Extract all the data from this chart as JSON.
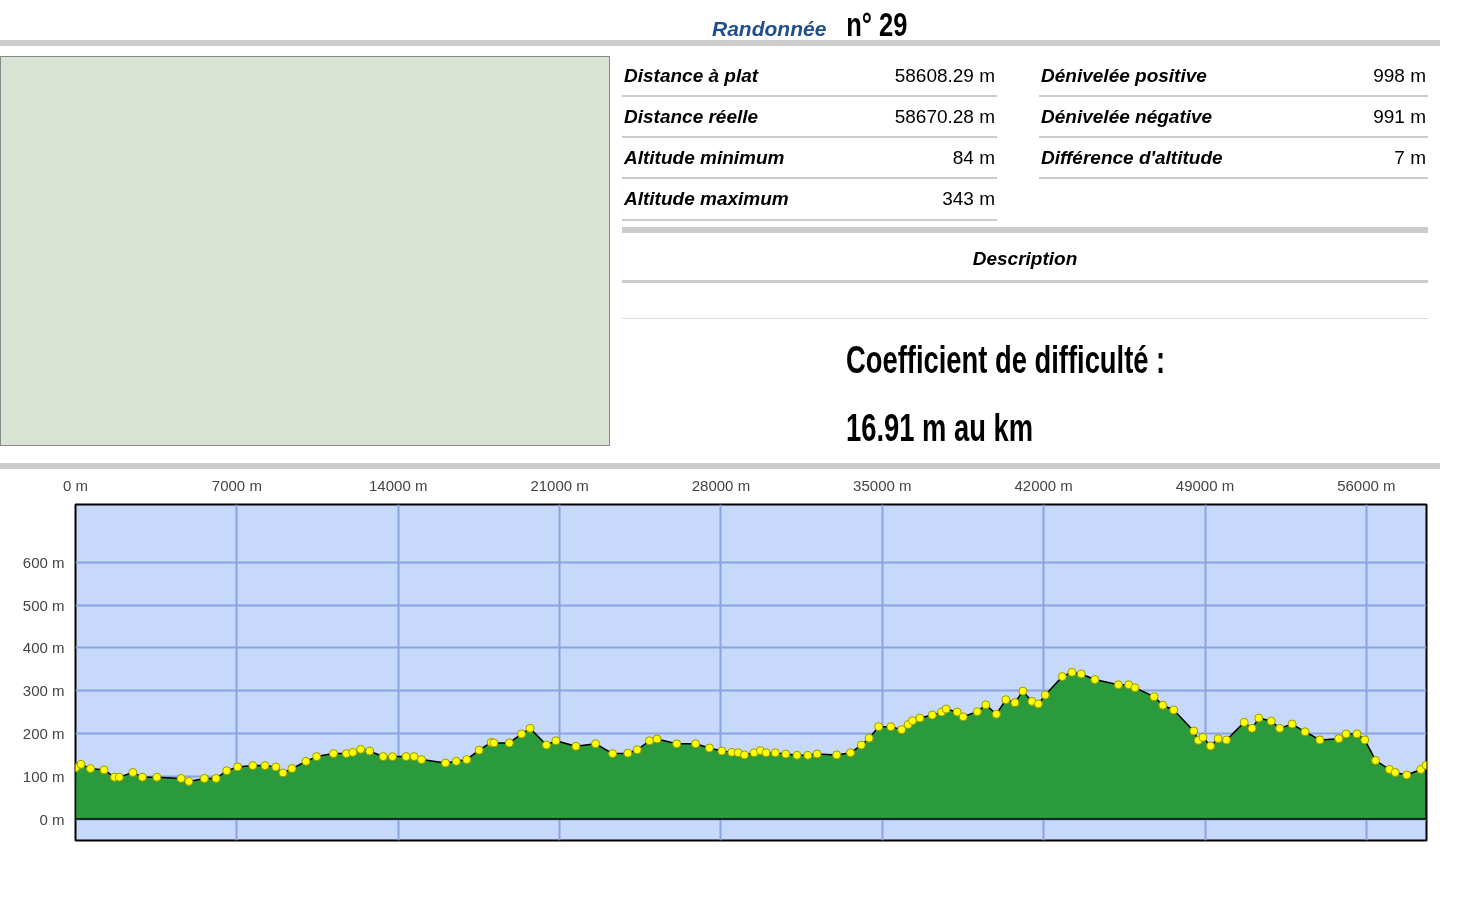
{
  "chart_data": [
    {
      "type": "other",
      "title": "Randonnée n° 29",
      "annotations": [
        "Distance à plat",
        "58608.29 m",
        "Distance réelle",
        "58670.28 m",
        "Altitude minimum",
        "84 m",
        "Altitude maximum",
        "343 m",
        "Dénivelée positive",
        "998 m",
        "Dénivelée négative",
        "991 m",
        "Différence d'altitude",
        "7 m",
        "Description",
        "Coefficient de difficulté :",
        "16.91 m au km"
      ]
    },
    {
      "type": "area",
      "color": "#2a9a3c",
      "marker": "circle",
      "grid": true,
      "xlim": [
        0,
        58608
      ],
      "ylim": [
        -50,
        735
      ],
      "xticks": [
        {
          "value": 0,
          "label": "0 m"
        },
        {
          "value": 7000,
          "label": "7000 m"
        },
        {
          "value": 14000,
          "label": "14000 m"
        },
        {
          "value": 21000,
          "label": "21000 m"
        },
        {
          "value": 28000,
          "label": "28000 m"
        },
        {
          "value": 35000,
          "label": "35000 m"
        },
        {
          "value": 42000,
          "label": "42000 m"
        },
        {
          "value": 49000,
          "label": "49000 m"
        },
        {
          "value": 56000,
          "label": "56000 m"
        }
      ],
      "yticks": [
        {
          "value": 0,
          "label": "0 m"
        },
        {
          "value": 100,
          "label": "100 m"
        },
        {
          "value": 200,
          "label": "200 m"
        },
        {
          "value": 300,
          "label": "300 m"
        },
        {
          "value": 400,
          "label": "400 m"
        },
        {
          "value": 500,
          "label": "500 m"
        },
        {
          "value": 600,
          "label": "600 m"
        }
      ],
      "x": [
        0,
        240,
        650,
        1240,
        1690,
        1900,
        2490,
        2900,
        3530,
        4580,
        4920,
        5590,
        6100,
        6560,
        7030,
        7690,
        8220,
        8690,
        9000,
        9390,
        10000,
        10460,
        11190,
        11750,
        12030,
        12370,
        12760,
        13350,
        13750,
        14340,
        14690,
        15010,
        16050,
        16520,
        16970,
        17510,
        18030,
        18150,
        18820,
        19350,
        19720,
        20430,
        20840,
        21710,
        22560,
        23300,
        23960,
        24370,
        24900,
        25230,
        26080,
        26900,
        27500,
        28040,
        28470,
        28750,
        29020,
        29440,
        29710,
        29960,
        30360,
        30810,
        31300,
        31770,
        32170,
        33020,
        33620,
        34090,
        34430,
        34840,
        35370,
        35840,
        36120,
        36310,
        36630,
        37170,
        37570,
        37770,
        38250,
        38510,
        39120,
        39490,
        39950,
        40360,
        40750,
        41100,
        41490,
        41770,
        42070,
        42810,
        43230,
        43630,
        44220,
        45240,
        45690,
        45960,
        46790,
        47170,
        47640,
        48510,
        48710,
        48910,
        49240,
        49570,
        49930,
        50700,
        51040,
        51330,
        51870,
        52240,
        52780,
        53340,
        53980,
        54800,
        55120,
        55590,
        55930,
        56400,
        57000,
        57250,
        57750,
        58360,
        58590
      ],
      "values": [
        120,
        128,
        118,
        115,
        98,
        98,
        109,
        98,
        98,
        95,
        88,
        95,
        95,
        113,
        122,
        125,
        125,
        122,
        108,
        118,
        135,
        146,
        153,
        153,
        156,
        163,
        159,
        146,
        146,
        146,
        146,
        139,
        131,
        135,
        139,
        161,
        179,
        178,
        178,
        199,
        212,
        173,
        183,
        170,
        176,
        153,
        154,
        162,
        183,
        187,
        176,
        176,
        166,
        159,
        156,
        155,
        150,
        155,
        160,
        155,
        155,
        152,
        149,
        149,
        152,
        150,
        155,
        173,
        189,
        216,
        216,
        209,
        221,
        230,
        236,
        243,
        250,
        257,
        250,
        239,
        251,
        267,
        245,
        279,
        272,
        299,
        275,
        269,
        290,
        333,
        343,
        339,
        326,
        314,
        314,
        307,
        286,
        266,
        255,
        206,
        184,
        191,
        171,
        188,
        185,
        226,
        212,
        236,
        229,
        212,
        222,
        204,
        185,
        188,
        199,
        199,
        185,
        137,
        116,
        109,
        103,
        116,
        126
      ]
    }
  ]
}
